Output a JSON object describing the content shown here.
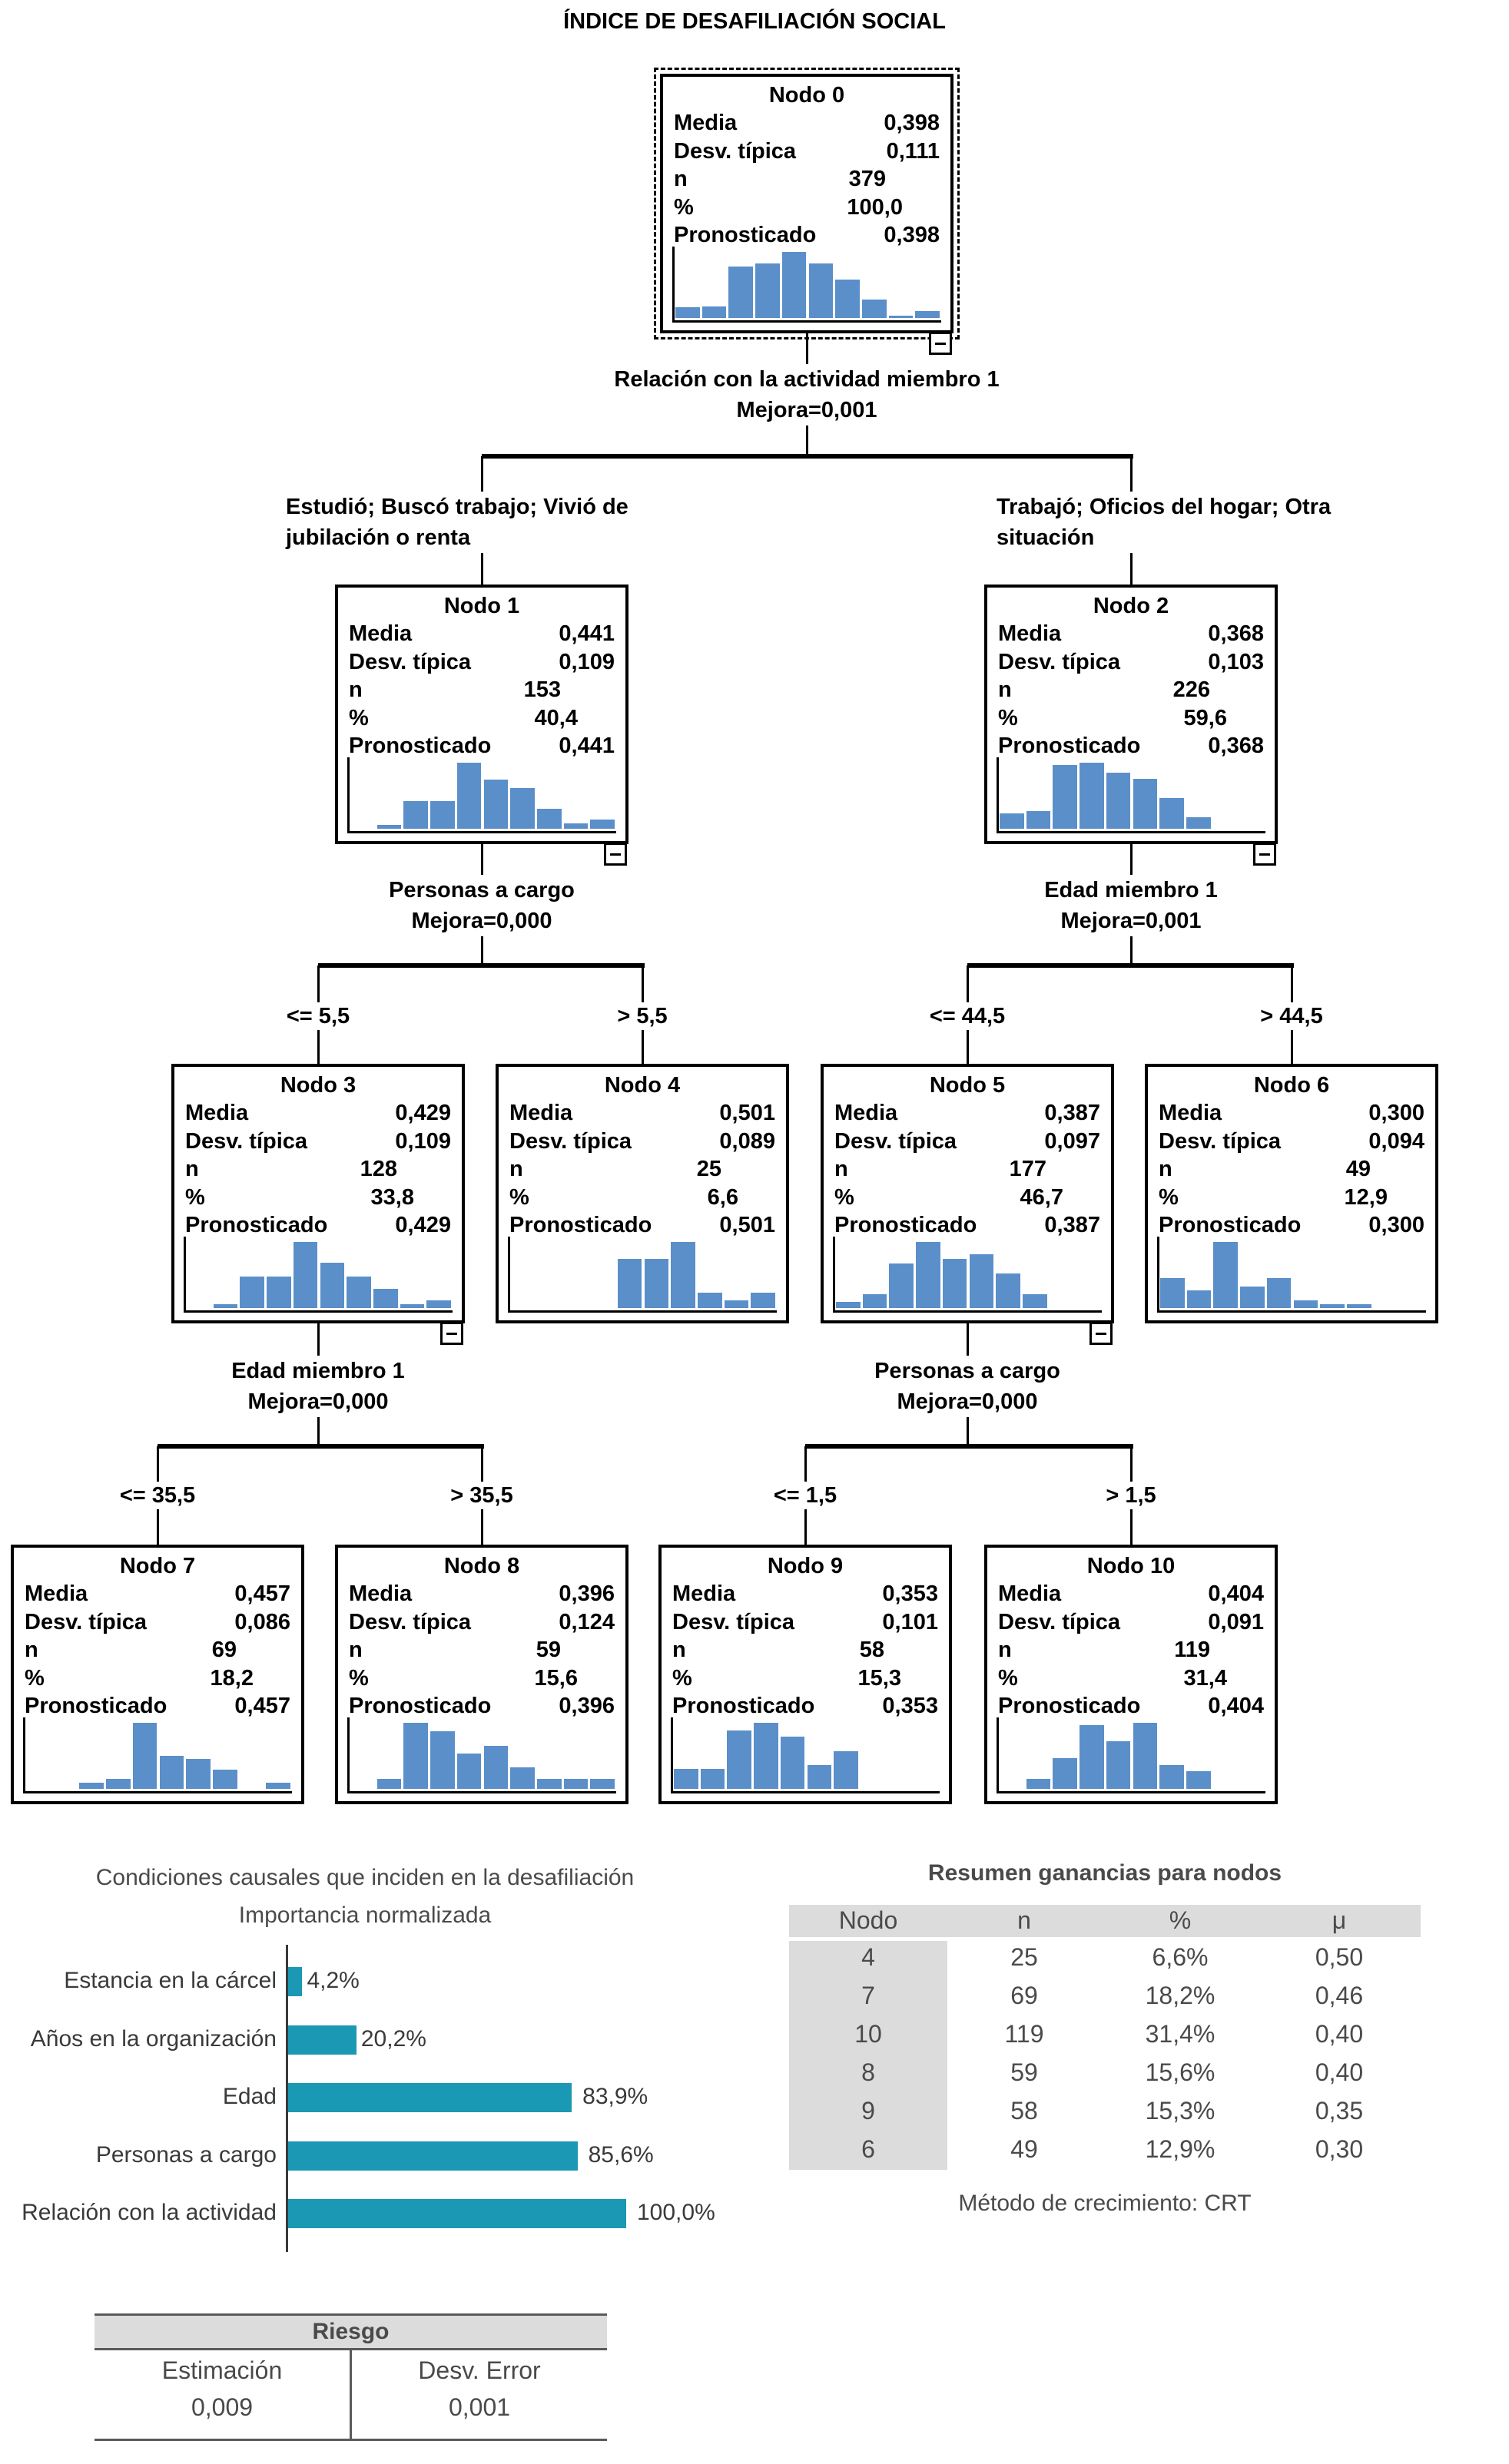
{
  "tree": {
    "title": "ÍNDICE DE DESAFILIACIÓN SOCIAL",
    "stat_labels": {
      "mean": "Media",
      "std": "Desv. típica",
      "n": "n",
      "pct": "%",
      "predicted": "Pronosticado"
    },
    "node_label_prefix": "Nodo",
    "nodes": [
      {
        "id": 0,
        "title": "Nodo 0",
        "mean": "0,398",
        "std": "0,111",
        "n": "379",
        "pct": "100,0",
        "predicted": "0,398",
        "histogram": [
          0.16,
          0.18,
          0.78,
          0.82,
          1.0,
          0.82,
          0.58,
          0.28,
          0.04,
          0.1
        ],
        "collapsible": true,
        "selected": true
      },
      {
        "id": 1,
        "title": "Nodo 1",
        "mean": "0,441",
        "std": "0,109",
        "n": "153",
        "pct": "40,4",
        "predicted": "0,441",
        "histogram": [
          0,
          0.06,
          0.42,
          0.42,
          1.0,
          0.74,
          0.62,
          0.3,
          0.08,
          0.14
        ],
        "collapsible": true
      },
      {
        "id": 2,
        "title": "Nodo 2",
        "mean": "0,368",
        "std": "0,103",
        "n": "226",
        "pct": "59,6",
        "predicted": "0,368",
        "histogram": [
          0.23,
          0.27,
          0.97,
          1.0,
          0.85,
          0.76,
          0.46,
          0.18,
          0,
          0
        ],
        "collapsible": true
      },
      {
        "id": 3,
        "title": "Nodo 3",
        "mean": "0,429",
        "std": "0,109",
        "n": "128",
        "pct": "33,8",
        "predicted": "0,429",
        "histogram": [
          0,
          0.06,
          0.48,
          0.48,
          1.0,
          0.69,
          0.48,
          0.29,
          0.06,
          0.12
        ],
        "collapsible": true
      },
      {
        "id": 4,
        "title": "Nodo 4",
        "mean": "0,501",
        "std": "0,089",
        "n": "25",
        "pct": "6,6",
        "predicted": "0,501",
        "histogram": [
          0,
          0,
          0,
          0,
          0.75,
          0.75,
          1.0,
          0.23,
          0.12,
          0.23
        ],
        "collapsible": false
      },
      {
        "id": 5,
        "title": "Nodo 5",
        "mean": "0,387",
        "std": "0,097",
        "n": "177",
        "pct": "46,7",
        "predicted": "0,387",
        "histogram": [
          0.09,
          0.21,
          0.67,
          1.0,
          0.75,
          0.81,
          0.52,
          0.21,
          0,
          0
        ],
        "collapsible": true
      },
      {
        "id": 6,
        "title": "Nodo 6",
        "mean": "0,300",
        "std": "0,094",
        "n": "49",
        "pct": "12,9",
        "predicted": "0,300",
        "histogram": [
          0.45,
          0.27,
          1.0,
          0.33,
          0.45,
          0.12,
          0.06,
          0.06,
          0,
          0
        ],
        "collapsible": false
      },
      {
        "id": 7,
        "title": "Nodo 7",
        "mean": "0,457",
        "std": "0,086",
        "n": "69",
        "pct": "18,2",
        "predicted": "0,457",
        "histogram": [
          0,
          0,
          0.09,
          0.15,
          1.0,
          0.5,
          0.45,
          0.29,
          0,
          0.09
        ],
        "collapsible": false
      },
      {
        "id": 8,
        "title": "Nodo 8",
        "mean": "0,396",
        "std": "0,124",
        "n": "59",
        "pct": "15,6",
        "predicted": "0,396",
        "histogram": [
          0,
          0.15,
          1.0,
          0.87,
          0.53,
          0.65,
          0.33,
          0.15,
          0.15,
          0.15
        ],
        "collapsible": false
      },
      {
        "id": 9,
        "title": "Nodo 9",
        "mean": "0,353",
        "std": "0,101",
        "n": "58",
        "pct": "15,3",
        "predicted": "0,353",
        "histogram": [
          0.3,
          0.3,
          0.88,
          1.0,
          0.79,
          0.36,
          0.57,
          0,
          0,
          0
        ],
        "collapsible": false
      },
      {
        "id": 10,
        "title": "Nodo 10",
        "mean": "0,404",
        "std": "0,091",
        "n": "119",
        "pct": "31,4",
        "predicted": "0,404",
        "histogram": [
          0,
          0.15,
          0.46,
          0.96,
          0.72,
          1.0,
          0.36,
          0.27,
          0,
          0
        ],
        "collapsible": false
      }
    ],
    "splits": [
      {
        "parent": 0,
        "variable": "Relación con la actividad miembro 1",
        "improvement": "Mejora=0,001",
        "branches": [
          {
            "child": 1,
            "condition": "Estudió; Buscó trabajo; Vivió de jubilación o renta"
          },
          {
            "child": 2,
            "condition": "Trabajó; Oficios del hogar; Otra situación"
          }
        ]
      },
      {
        "parent": 1,
        "variable": "Personas a cargo",
        "improvement": "Mejora=0,000",
        "branches": [
          {
            "child": 3,
            "condition": "<= 5,5"
          },
          {
            "child": 4,
            "condition": "> 5,5"
          }
        ]
      },
      {
        "parent": 2,
        "variable": "Edad miembro 1",
        "improvement": "Mejora=0,001",
        "branches": [
          {
            "child": 5,
            "condition": "<= 44,5"
          },
          {
            "child": 6,
            "condition": "> 44,5"
          }
        ]
      },
      {
        "parent": 3,
        "variable": "Edad miembro 1",
        "improvement": "Mejora=0,000",
        "branches": [
          {
            "child": 7,
            "condition": "<= 35,5"
          },
          {
            "child": 8,
            "condition": "> 35,5"
          }
        ]
      },
      {
        "parent": 5,
        "variable": "Personas a cargo",
        "improvement": "Mejora=0,000",
        "branches": [
          {
            "child": 9,
            "condition": "<= 1,5"
          },
          {
            "child": 10,
            "condition": "> 1,5"
          }
        ]
      }
    ],
    "histogram_color": "#5b8fc9"
  },
  "chart_data": {
    "type": "bar",
    "orientation": "horizontal",
    "title": "Condiciones causales que inciden en la desafiliación",
    "subtitle": "Importancia normalizada",
    "categories": [
      "Estancia en la cárcel",
      "Años en la organización",
      "Edad",
      "Personas a cargo",
      "Relación con la actividad"
    ],
    "values": [
      4.2,
      20.2,
      83.9,
      85.6,
      100.0
    ],
    "value_labels": [
      "4,2%",
      "20,2%",
      "83,9%",
      "85,6%",
      "100,0%"
    ],
    "xlabel": "",
    "ylabel": "",
    "xlim": [
      0,
      100
    ],
    "grid": false,
    "legend": "none",
    "bar_color": "#1b98b3"
  },
  "gains_table": {
    "title": "Resumen ganancias para nodos",
    "columns": [
      "Nodo",
      "n",
      "%",
      "μ"
    ],
    "rows": [
      [
        "4",
        "25",
        "6,6%",
        "0,50"
      ],
      [
        "7",
        "69",
        "18,2%",
        "0,46"
      ],
      [
        "10",
        "119",
        "31,4%",
        "0,40"
      ],
      [
        "8",
        "59",
        "15,6%",
        "0,40"
      ],
      [
        "9",
        "58",
        "15,3%",
        "0,35"
      ],
      [
        "6",
        "49",
        "12,9%",
        "0,30"
      ]
    ],
    "footnote": "Método de crecimiento: CRT"
  },
  "risk_table": {
    "title": "Riesgo",
    "columns": [
      "Estimación",
      "Desv. Error"
    ],
    "values": [
      "0,009",
      "0,001"
    ]
  }
}
